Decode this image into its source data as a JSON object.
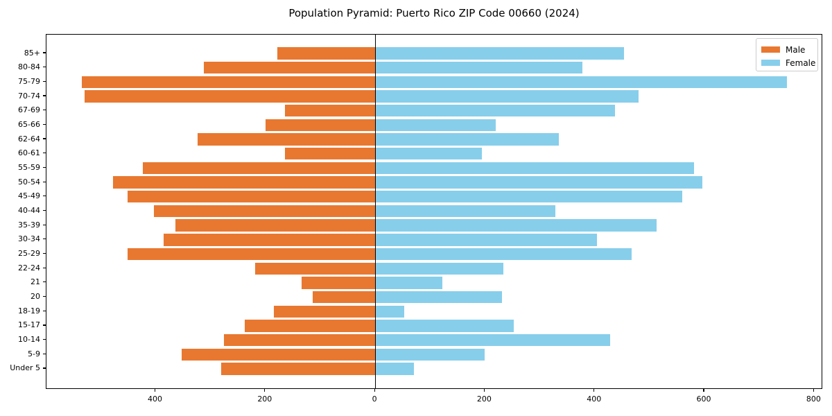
{
  "title": "Population Pyramid: Puerto Rico ZIP Code 00660 (2024)",
  "legend": {
    "male_label": "Male",
    "female_label": "Female"
  },
  "colors": {
    "male": "#E87830",
    "female": "#87CEEB",
    "axis": "#000000",
    "legend_border": "#cccccc",
    "background": "#ffffff"
  },
  "chart_data": {
    "type": "bar",
    "subtype": "population-pyramid",
    "title": "Population Pyramid: Puerto Rico ZIP Code 00660 (2024)",
    "xlabel": "",
    "ylabel": "",
    "grid": false,
    "legend_position": "upper right",
    "categories": [
      "85+",
      "80-84",
      "75-79",
      "70-74",
      "67-69",
      "65-66",
      "62-64",
      "60-61",
      "55-59",
      "50-54",
      "45-49",
      "40-44",
      "35-39",
      "30-34",
      "25-29",
      "22-24",
      "21",
      "20",
      "18-19",
      "15-17",
      "10-14",
      "5-9",
      "Under 5"
    ],
    "series": [
      {
        "name": "Male",
        "side": "left",
        "color": "#E87830",
        "values": [
          178,
          312,
          535,
          530,
          164,
          200,
          323,
          165,
          423,
          478,
          451,
          403,
          364,
          386,
          451,
          219,
          134,
          114,
          184,
          238,
          276,
          353,
          281
        ]
      },
      {
        "name": "Female",
        "side": "right",
        "color": "#87CEEB",
        "values": [
          454,
          377,
          750,
          480,
          437,
          220,
          335,
          195,
          581,
          596,
          560,
          328,
          513,
          404,
          467,
          233,
          122,
          231,
          53,
          252,
          428,
          200,
          71
        ]
      }
    ],
    "xlim": [
      -599,
      816
    ],
    "x_ticks": [
      {
        "value": -400,
        "label": "400"
      },
      {
        "value": -200,
        "label": "200"
      },
      {
        "value": 0,
        "label": "0"
      },
      {
        "value": 200,
        "label": "200"
      },
      {
        "value": 400,
        "label": "400"
      },
      {
        "value": 600,
        "label": "600"
      },
      {
        "value": 800,
        "label": "800"
      }
    ]
  }
}
